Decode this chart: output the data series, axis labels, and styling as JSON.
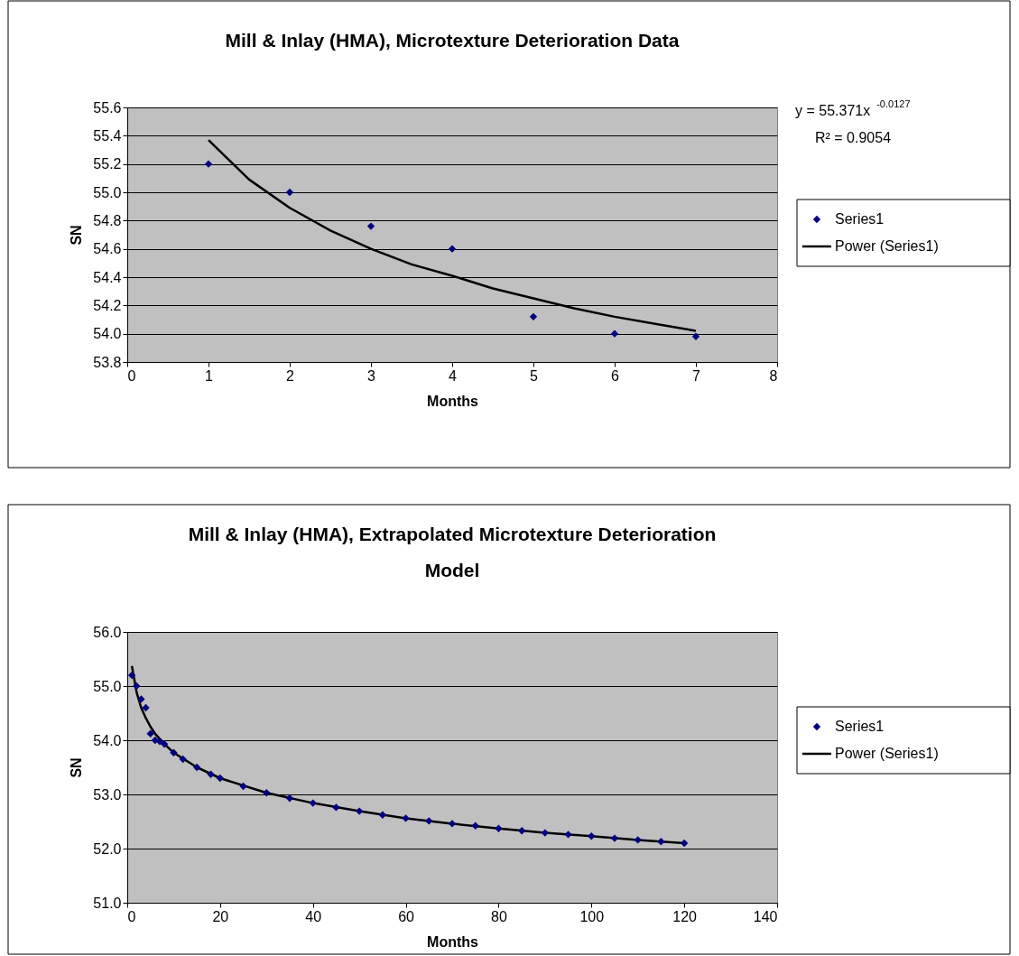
{
  "chart_data": [
    {
      "type": "scatter",
      "title": "Mill & Inlay (HMA), Microtexture Deterioration Data",
      "xlabel": "Months",
      "ylabel": "SN",
      "xlim": [
        0,
        8
      ],
      "xticks": [
        0,
        1,
        2,
        3,
        4,
        5,
        6,
        7,
        8
      ],
      "ylim": [
        53.8,
        55.6
      ],
      "yticks": [
        {
          "value": 53.8,
          "label": "53.8"
        },
        {
          "value": 54,
          "label": "54.0"
        },
        {
          "value": 54.2,
          "label": "54.2"
        },
        {
          "value": 54.4,
          "label": "54.4"
        },
        {
          "value": 54.6,
          "label": "54.6"
        },
        {
          "value": 54.8,
          "label": "54.8"
        },
        {
          "value": 55,
          "label": "55.0"
        },
        {
          "value": 55.2,
          "label": "55.2"
        },
        {
          "value": 55.4,
          "label": "55.4"
        },
        {
          "value": 55.6,
          "label": "55.6"
        }
      ],
      "grid": "y",
      "legend": "right",
      "annotations": [
        "y = 55.371x$^{-0.0127}$",
        "R² = 0.9054"
      ],
      "series": [
        {
          "name": "Series1",
          "marker": "diamond",
          "color": "#000080",
          "x": [
            1,
            2,
            3,
            4,
            5,
            6,
            7
          ],
          "values": [
            55.2,
            55.0,
            54.76,
            54.6,
            54.12,
            54.0,
            53.98
          ]
        },
        {
          "name": "Power (Series1)",
          "type": "line",
          "color": "#000000",
          "x": [
            1,
            1.5,
            2,
            2.5,
            3,
            3.5,
            4,
            4.5,
            5,
            5.5,
            6,
            6.5,
            7
          ],
          "values": [
            55.37,
            55.09,
            54.89,
            54.73,
            54.6,
            54.49,
            54.41,
            54.32,
            54.25,
            54.18,
            54.12,
            54.07,
            54.02
          ]
        }
      ]
    },
    {
      "type": "scatter",
      "title": "Mill & Inlay (HMA), Extrapolated Microtexture Deterioration Model",
      "xlabel": "Months",
      "ylabel": "SN",
      "xlim": [
        0,
        140
      ],
      "xticks": [
        0,
        20,
        40,
        60,
        80,
        100,
        120,
        140
      ],
      "ylim": [
        51,
        56
      ],
      "yticks": [
        {
          "value": 51,
          "label": "51.0"
        },
        {
          "value": 52,
          "label": "52.0"
        },
        {
          "value": 53,
          "label": "53.0"
        },
        {
          "value": 54,
          "label": "54.0"
        },
        {
          "value": 55,
          "label": "55.0"
        },
        {
          "value": 56,
          "label": "56.0"
        }
      ],
      "grid": "y",
      "legend": "right",
      "series": [
        {
          "name": "Series1",
          "marker": "diamond",
          "color": "#000080",
          "x": [
            1,
            2,
            3,
            4,
            5,
            6,
            7,
            8,
            10,
            12,
            15,
            18,
            20,
            25,
            30,
            35,
            40,
            45,
            50,
            55,
            60,
            65,
            70,
            75,
            80,
            85,
            90,
            95,
            100,
            105,
            110,
            115,
            120
          ],
          "values": [
            55.2,
            55.0,
            54.76,
            54.6,
            54.12,
            54.0,
            53.98,
            53.93,
            53.77,
            53.65,
            53.5,
            53.37,
            53.3,
            53.15,
            53.03,
            52.93,
            52.84,
            52.76,
            52.69,
            52.62,
            52.56,
            52.51,
            52.46,
            52.42,
            52.37,
            52.33,
            52.29,
            52.26,
            52.23,
            52.19,
            52.16,
            52.13,
            52.1
          ]
        },
        {
          "name": "Power (Series1)",
          "type": "line",
          "color": "#000000",
          "x": [
            1,
            2,
            3,
            4,
            5,
            6,
            8,
            10,
            15,
            20,
            30,
            40,
            50,
            60,
            70,
            80,
            90,
            100,
            110,
            120
          ],
          "values": [
            55.37,
            54.89,
            54.6,
            54.41,
            54.25,
            54.12,
            53.93,
            53.77,
            53.5,
            53.3,
            53.03,
            52.84,
            52.69,
            52.56,
            52.46,
            52.37,
            52.29,
            52.23,
            52.16,
            52.1
          ]
        }
      ]
    }
  ]
}
